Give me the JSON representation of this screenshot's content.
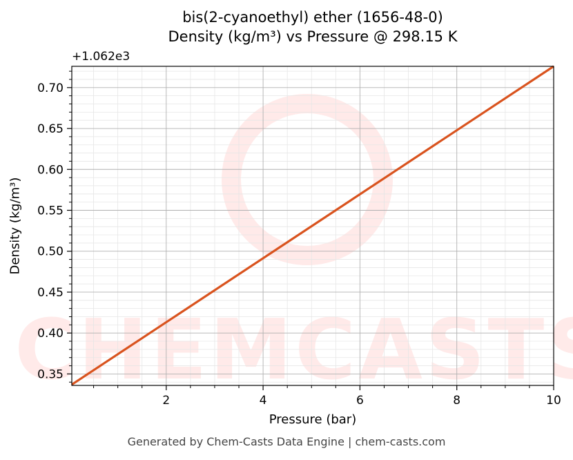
{
  "chart_data": {
    "type": "line",
    "title": "bis(2-cyanoethyl) ether (1656-48-0)",
    "subtitle": "Density (kg/m³) vs Pressure @ 298.15 K",
    "xlabel": "Pressure (bar)",
    "ylabel": "Density (kg/m³)",
    "y_offset_label": "+1.062e3",
    "xlim": [
      0.05,
      10
    ],
    "ylim": [
      0.336,
      0.726
    ],
    "x_ticks": [
      2,
      4,
      6,
      8,
      10
    ],
    "x_tick_labels": [
      "2",
      "4",
      "6",
      "8",
      "10"
    ],
    "y_ticks": [
      0.35,
      0.4,
      0.45,
      0.5,
      0.55,
      0.6,
      0.65,
      0.7
    ],
    "y_tick_labels": [
      "0.35",
      "0.40",
      "0.45",
      "0.50",
      "0.55",
      "0.60",
      "0.65",
      "0.70"
    ],
    "grid": true,
    "series": [
      {
        "color": "#d9531e",
        "x": [
          0.05,
          10
        ],
        "y": [
          0.337,
          0.726
        ]
      }
    ]
  },
  "watermark": "CHEMCASTS",
  "footer": "Generated by Chem-Casts Data Engine | chem-casts.com"
}
